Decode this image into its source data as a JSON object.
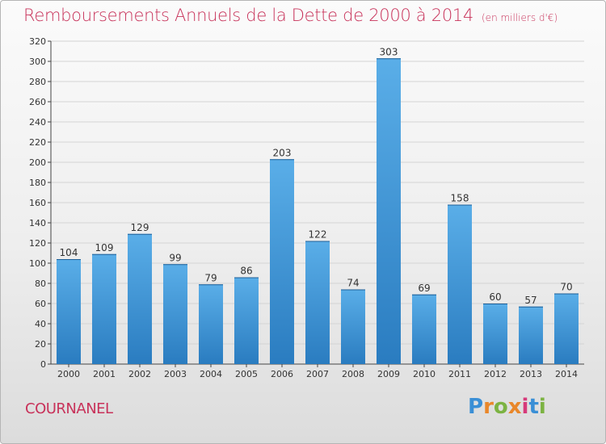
{
  "title": "Remboursements Annuels de la Dette de 2000 à 2014",
  "unit": "(en milliers d'€)",
  "place_name": "COURNANEL",
  "logo": {
    "text": "Proxiti",
    "letters": [
      "P",
      "r",
      "o",
      "x",
      "i",
      "t",
      "i"
    ],
    "colors": [
      "#3a8fd6",
      "#e9872a",
      "#7cb342",
      "#e9872a",
      "#d63a7a",
      "#3a8fd6",
      "#7cb342"
    ]
  },
  "colors": {
    "bar_top": "#5aaee8",
    "bar_bottom": "#2a7cc0",
    "title": "#c8325a"
  },
  "chart_data": {
    "type": "bar",
    "categories": [
      "2000",
      "2001",
      "2002",
      "2003",
      "2004",
      "2005",
      "2006",
      "2007",
      "2008",
      "2009",
      "2010",
      "2011",
      "2012",
      "2013",
      "2014"
    ],
    "values": [
      104,
      109,
      129,
      99,
      79,
      86,
      203,
      122,
      74,
      303,
      69,
      158,
      60,
      57,
      70
    ],
    "yticks": [
      0,
      20,
      40,
      60,
      80,
      100,
      120,
      140,
      160,
      180,
      200,
      220,
      240,
      260,
      280,
      300,
      320
    ],
    "ylim": [
      0,
      320
    ],
    "grid": true
  }
}
